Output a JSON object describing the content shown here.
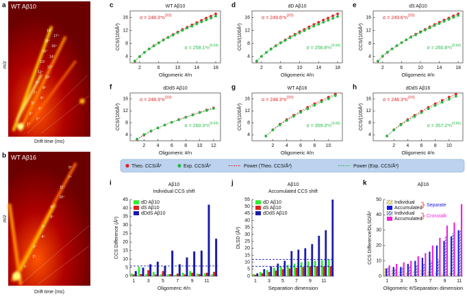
{
  "heatmaps": [
    {
      "panel": "a",
      "title": "WT Aβ10",
      "ylabel": "m/z",
      "xlabel": "Drift time (ms)",
      "peak_labels": [
        "19⁺",
        "17⁺",
        "18⁺",
        "16⁺",
        "15⁺",
        "14⁺",
        "13⁺",
        "12⁺",
        "11⁺",
        "10⁺",
        "9⁺",
        "8⁺",
        "7⁺",
        "6⁺",
        "5⁺",
        "4⁺",
        "3⁺",
        "2⁺",
        "1⁺"
      ]
    },
    {
      "panel": "b",
      "title": "WT Aβ16",
      "ylabel": "m/z",
      "xlabel": "Drift time (ms)",
      "peak_labels": [
        "9⁺",
        "7⁺",
        "11⁺",
        "10⁺",
        "8⁺",
        "6⁺",
        "5⁺",
        "4⁺",
        "3⁺",
        "2⁺",
        "1⁺"
      ]
    }
  ],
  "legend": {
    "items": [
      {
        "name": "Theo. CCS/Å²",
        "color": "#e02020",
        "style": "dot"
      },
      {
        "name": "Exp. CCS/Å²",
        "color": "#22bb44",
        "style": "dot"
      },
      {
        "name": "Power (Theo. CCS/Å²)",
        "color": "#e02020",
        "style": "dash"
      },
      {
        "name": "Power (Exp. CCS/Å²)",
        "color": "#22bb44",
        "style": "dash"
      }
    ]
  },
  "chart_data": [
    {
      "panel": "c",
      "type": "line",
      "title": "WT Aβ10",
      "xlabel": "Oligomeric #/n",
      "ylabel": "CCS/(100Å²)",
      "x": [
        1,
        2,
        3,
        4,
        5,
        6,
        7,
        8,
        9,
        10,
        11,
        12,
        13,
        14,
        15,
        16,
        17,
        18
      ],
      "xlim": [
        0,
        19
      ],
      "xticks": [
        2,
        6,
        10,
        14,
        18
      ],
      "ylim": [
        2,
        18
      ],
      "yticks": [
        4,
        8,
        12,
        16
      ],
      "series": [
        {
          "color": "#e02020",
          "values": [
            2.5,
            3.9,
            5.2,
            6.3,
            7.3,
            8.2,
            9.1,
            9.9,
            10.7,
            11.5,
            12.3,
            13.0,
            13.7,
            14.4,
            15.1,
            15.8,
            16.4,
            17.1
          ]
        },
        {
          "color": "#22bb44",
          "values": [
            2.6,
            4.0,
            5.2,
            6.3,
            7.2,
            8.1,
            9.0,
            9.8,
            10.5,
            11.3,
            12.0,
            12.7,
            13.3,
            14.0,
            14.6,
            15.2,
            15.8,
            16.4
          ]
        }
      ],
      "fits": [
        {
          "text": "σ = 248.3*n",
          "sup": "(2/3)"
        },
        {
          "text": "σ = 258.1*n",
          "sup": "(0.64)"
        }
      ]
    },
    {
      "panel": "d",
      "type": "line",
      "title": "dD Aβ10",
      "xlabel": "Oligomeric #/n",
      "ylabel": "CCS/(100Å²)",
      "x": [
        1,
        2,
        3,
        4,
        5,
        6,
        7,
        8,
        9,
        10,
        11,
        12,
        13,
        14,
        15,
        16,
        17,
        18
      ],
      "xlim": [
        0,
        19
      ],
      "xticks": [
        2,
        6,
        10,
        14,
        18
      ],
      "ylim": [
        2,
        18
      ],
      "yticks": [
        4,
        8,
        12,
        16
      ],
      "series": [
        {
          "color": "#e02020",
          "values": [
            2.5,
            4.0,
            5.2,
            6.3,
            7.3,
            8.2,
            9.1,
            10.0,
            10.8,
            11.6,
            12.3,
            13.1,
            13.8,
            14.5,
            15.2,
            15.8,
            16.5,
            17.1
          ]
        },
        {
          "color": "#22bb44",
          "values": [
            2.6,
            4.0,
            5.2,
            6.2,
            7.2,
            8.1,
            8.9,
            9.7,
            10.5,
            11.2,
            11.9,
            12.6,
            13.3,
            13.9,
            14.5,
            15.1,
            15.7,
            16.3
          ]
        }
      ],
      "fits": [
        {
          "text": "σ = 249.6*n",
          "sup": "(2/3)"
        },
        {
          "text": "σ = 256.8*n",
          "sup": "(0.64)"
        }
      ]
    },
    {
      "panel": "e",
      "type": "line",
      "title": "dS Aβ10",
      "xlabel": "Oligomeric #/n",
      "ylabel": "CCS/(100Å²)",
      "x": [
        1,
        2,
        3,
        4,
        5,
        6,
        7,
        8,
        9,
        10,
        11,
        12,
        13,
        14,
        15,
        16,
        17,
        18
      ],
      "xlim": [
        0,
        19
      ],
      "xticks": [
        2,
        6,
        10,
        14,
        18
      ],
      "ylim": [
        2,
        18
      ],
      "yticks": [
        4,
        8,
        12,
        16
      ],
      "series": [
        {
          "color": "#e02020",
          "values": [
            2.5,
            4.0,
            5.2,
            6.3,
            7.3,
            8.2,
            9.1,
            10.0,
            10.8,
            11.6,
            12.3,
            13.1,
            13.8,
            14.5,
            15.2,
            15.8,
            16.5,
            17.1
          ]
        },
        {
          "color": "#22bb44",
          "values": [
            2.6,
            4.1,
            5.3,
            6.3,
            7.3,
            8.2,
            9.1,
            9.9,
            10.6,
            11.4,
            12.1,
            12.8,
            13.5,
            14.1,
            14.8,
            15.4,
            16.0,
            16.6
          ]
        }
      ],
      "fits": [
        {
          "text": "σ = 249.6*n",
          "sup": "(2/3)"
        },
        {
          "text": "σ = 260.8*n",
          "sup": "(0.64)"
        }
      ]
    },
    {
      "panel": "f",
      "type": "line",
      "title": "dDdS Aβ10",
      "xlabel": "Oligomeric #/n",
      "ylabel": "CCS/(100Å²)",
      "x": [
        1,
        2,
        3,
        4,
        5,
        6,
        7,
        8,
        9,
        10,
        11,
        12
      ],
      "xlim": [
        0,
        13
      ],
      "xticks": [
        2,
        4,
        6,
        8,
        10,
        12
      ],
      "ylim": [
        2,
        18
      ],
      "yticks": [
        4,
        8,
        12,
        16
      ],
      "series": [
        {
          "color": "#e02020",
          "values": [
            2.5,
            3.9,
            5.2,
            6.3,
            7.3,
            8.2,
            9.1,
            9.9,
            10.7,
            11.5,
            12.3,
            13.0
          ]
        },
        {
          "color": "#22bb44",
          "values": [
            2.6,
            4.1,
            5.3,
            6.3,
            7.3,
            8.2,
            9.0,
            9.8,
            10.6,
            11.4,
            12.1,
            12.8
          ]
        }
      ],
      "fits": [
        {
          "text": "σ = 248.3*n",
          "sup": "(2/3)"
        },
        {
          "text": "σ = 260.3*n",
          "sup": "(0.64)"
        }
      ]
    },
    {
      "panel": "g",
      "type": "line",
      "title": "WT Aβ16",
      "xlabel": "Oligomeric #/n",
      "ylabel": "CCS/(100Å²)",
      "x": [
        1,
        2,
        3,
        4,
        5,
        6,
        7,
        8,
        9,
        10,
        11
      ],
      "xlim": [
        -1,
        12
      ],
      "xticks": [
        2,
        4,
        6,
        8,
        10
      ],
      "ylim": [
        2,
        18
      ],
      "yticks": [
        4,
        8,
        12,
        16
      ],
      "series": [
        {
          "color": "#e02020",
          "values": [
            3.6,
            5.7,
            7.5,
            9.1,
            10.5,
            11.9,
            13.2,
            14.4,
            15.5,
            16.6,
            17.6
          ]
        },
        {
          "color": "#22bb44",
          "values": [
            3.6,
            5.6,
            7.3,
            8.8,
            10.2,
            11.5,
            12.7,
            13.9,
            15.0,
            16.0,
            17.1
          ]
        }
      ],
      "fits": [
        {
          "text": "σ = 248.3*n",
          "sup": "(2/3)"
        },
        {
          "text": "σ = 359.3*n",
          "sup": "(0.65)"
        }
      ]
    },
    {
      "panel": "h",
      "type": "line",
      "title": "dDdS Aβ16",
      "xlabel": "Oligomeric #/n",
      "ylabel": "CCS/(100Å²)",
      "x": [
        1,
        2,
        3,
        4,
        5,
        6,
        7,
        8,
        9,
        10,
        11
      ],
      "xlim": [
        -1,
        12
      ],
      "xticks": [
        2,
        4,
        6,
        8,
        10
      ],
      "ylim": [
        2,
        18
      ],
      "yticks": [
        4,
        8,
        12,
        16
      ],
      "series": [
        {
          "color": "#e02020",
          "values": [
            3.6,
            5.7,
            7.5,
            9.1,
            10.5,
            11.9,
            13.2,
            14.4,
            15.5,
            16.6,
            17.6
          ]
        },
        {
          "color": "#22bb44",
          "values": [
            3.6,
            5.6,
            7.3,
            8.8,
            10.1,
            11.4,
            12.7,
            13.8,
            14.9,
            15.9,
            16.9
          ]
        }
      ],
      "fits": [
        {
          "text": "σ = 248.3*n",
          "sup": "(2/3)"
        },
        {
          "text": "σ = 357.2*n",
          "sup": "(0.65)"
        }
      ]
    },
    {
      "panel": "i",
      "type": "bar",
      "title": "Aβ10",
      "subtitle": "Individual CCS shift",
      "xlabel": "Oligomeric #/n",
      "ylabel": "CCS Difference (Å²)",
      "categories": [
        "1",
        null,
        "3",
        null,
        "5",
        null,
        "7",
        null,
        "9",
        null,
        "11",
        null
      ],
      "ylim": [
        0,
        45
      ],
      "yticks": [
        0,
        5,
        10,
        15,
        20,
        25,
        30,
        35,
        40,
        45
      ],
      "hlines": [
        6
      ],
      "hline_color": "#1a1aaa",
      "series": [
        {
          "name": "dD Aβ10",
          "color": "#33ee33",
          "values": [
            1.5,
            5.5,
            1.2,
            2.5,
            1.0,
            1.2,
            0.8,
            2.0,
            3.0,
            1.5,
            1.5,
            1.0
          ]
        },
        {
          "name": "dS Aβ10",
          "color": "#dd2222",
          "values": [
            1.0,
            1.2,
            3.5,
            1.0,
            3.0,
            1.2,
            1.5,
            1.0,
            2.0,
            1.2,
            2.0,
            2.5
          ]
        },
        {
          "name": "dDdS Aβ10",
          "color": "#1a1aaa",
          "values": [
            3.0,
            5.0,
            7.0,
            8.5,
            6.0,
            15.0,
            7.0,
            11.0,
            14.5,
            15.0,
            42.0,
            22.0
          ]
        }
      ]
    },
    {
      "panel": "j",
      "type": "bar",
      "title": "Aβ10",
      "subtitle": "Accumulated CCS shift",
      "xlabel": "Separation dimension",
      "ylabel": "DLSD (Å²)",
      "categories": [
        "1",
        null,
        "3",
        null,
        "5",
        null,
        "7",
        null,
        "9",
        null,
        "11",
        null
      ],
      "ylim": [
        0,
        55
      ],
      "yticks": [
        0,
        5,
        10,
        15,
        20,
        25,
        30,
        35,
        40,
        45,
        50,
        55
      ],
      "hlines": [
        12,
        7
      ],
      "hline_color": "#1a1aaa",
      "series": [
        {
          "name": "dD Aβ10",
          "color": "#33ee33",
          "values": [
            1.5,
            3.0,
            4.5,
            6.0,
            7.0,
            8.0,
            9.0,
            10.0,
            10.5,
            11.0,
            11.5,
            12.0
          ]
        },
        {
          "name": "dS Aβ10",
          "color": "#dd2222",
          "values": [
            1.0,
            2.0,
            3.0,
            4.0,
            5.0,
            5.5,
            6.0,
            6.5,
            7.0,
            7.0,
            7.0,
            7.0
          ]
        },
        {
          "name": "dDdS Aβ10",
          "color": "#1a1aaa",
          "values": [
            2.0,
            5.0,
            7.0,
            9.0,
            11.0,
            18.0,
            19.0,
            20.0,
            23.0,
            29.0,
            33.0,
            55.0
          ]
        }
      ]
    },
    {
      "panel": "k",
      "type": "bar",
      "title": "Aβ16",
      "xlabel": "Oligomeric #/Separation dimension",
      "ylabel": "CCS Difference/DLSD/Å²",
      "categories": [
        "1",
        null,
        "3",
        null,
        "5",
        null,
        "7",
        null,
        "9",
        null,
        "11"
      ],
      "ylim": [
        0,
        50
      ],
      "yticks": [
        0,
        10,
        20,
        30,
        40,
        50
      ],
      "groups": [
        {
          "name": "Separate",
          "color": "#1a1add"
        },
        {
          "name": "Crosstalk",
          "color": "#ee22dd"
        }
      ],
      "series": [
        {
          "name": "Individual",
          "group": 0,
          "hatch": true,
          "color": "#d8c040",
          "values": [
            5,
            4,
            3,
            2,
            4,
            4,
            3,
            3,
            2,
            3,
            2
          ]
        },
        {
          "name": "Accumulated",
          "group": 0,
          "color": "#1a1add",
          "values": [
            5,
            6,
            6,
            8,
            10,
            12,
            16,
            20,
            23,
            26,
            30
          ]
        },
        {
          "name": "Individual",
          "group": 1,
          "hatch": true,
          "color": "#6a7ac0",
          "values": [
            6,
            5,
            6,
            7,
            7,
            8,
            10,
            11,
            26,
            28,
            30
          ]
        },
        {
          "name": "Accumulated",
          "group": 1,
          "color": "#ee22dd",
          "values": [
            7,
            8,
            9,
            10,
            13,
            15,
            20,
            25,
            33,
            35,
            47
          ]
        }
      ]
    }
  ]
}
